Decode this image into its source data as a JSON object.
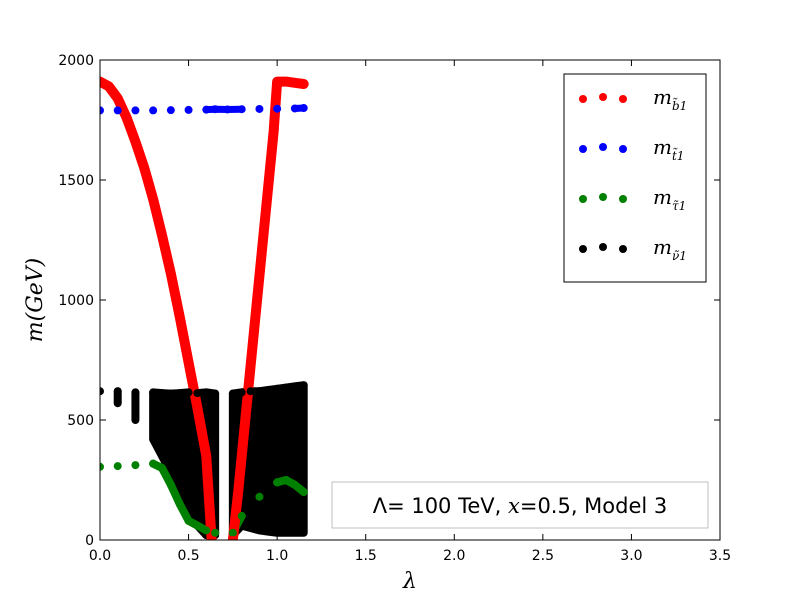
{
  "chart_data": {
    "type": "scatter",
    "title": "",
    "xlabel": "λ",
    "ylabel": "m(GeV)",
    "xlim": [
      0,
      3.5
    ],
    "ylim": [
      0,
      2000
    ],
    "xticks": [
      0,
      0.5,
      1,
      1.5,
      2,
      2.5,
      3,
      3.5
    ],
    "xtick_labels": [
      "0.0",
      "0.5",
      "1.0",
      "1.5",
      "2.0",
      "2.5",
      "3.0",
      "3.5"
    ],
    "yticks": [
      0,
      500,
      1000,
      1500,
      2000
    ],
    "ytick_labels": [
      "0",
      "500",
      "1000",
      "1500",
      "2000"
    ],
    "grid": false,
    "legend_position": "top-right",
    "annotation": "Λ= 100 TeV, x=0.5, Model 3",
    "annotation_parts": {
      "pre": "Λ= 100 TeV, ",
      "var": "x",
      "post": "=0.5, Model 3"
    },
    "annotation_position": "bottom-right",
    "series": [
      {
        "name": "m_b̃1",
        "legend_base": "m",
        "legend_sub": "b̃1",
        "color": "#ff0000",
        "x": [
          0.0,
          0.05,
          0.1,
          0.15,
          0.2,
          0.25,
          0.3,
          0.35,
          0.4,
          0.45,
          0.5,
          0.55,
          0.6,
          0.63,
          0.75,
          0.78,
          0.82,
          0.86,
          0.9,
          0.94,
          0.98,
          1.0,
          1.05,
          1.1,
          1.15
        ],
        "y": [
          1910,
          1890,
          1840,
          1760,
          1660,
          1550,
          1420,
          1270,
          1110,
          930,
          740,
          550,
          350,
          0,
          0,
          200,
          500,
          800,
          1100,
          1400,
          1700,
          1910,
          1910,
          1905,
          1900
        ]
      },
      {
        "name": "m_t̃1",
        "legend_base": "m",
        "legend_sub": "t̃1",
        "color": "#0000ff",
        "x": [
          0.0,
          0.1,
          0.2,
          0.3,
          0.4,
          0.5,
          0.6,
          0.65,
          0.72,
          0.8,
          0.9,
          1.0,
          1.1,
          1.15
        ],
        "y": [
          1790,
          1790,
          1790,
          1790,
          1791,
          1792,
          1793,
          1795,
          1794,
          1795,
          1796,
          1797,
          1798,
          1800
        ]
      },
      {
        "name": "m_τ̃1",
        "legend_base": "m",
        "legend_sub": "τ̃1",
        "color": "#008000",
        "x": [
          0.0,
          0.1,
          0.2,
          0.3,
          0.35,
          0.4,
          0.45,
          0.5,
          0.55,
          0.6,
          0.65,
          0.75,
          0.8,
          0.9,
          1.0,
          1.05,
          1.1,
          1.15
        ],
        "y": [
          305,
          308,
          312,
          318,
          300,
          230,
          150,
          80,
          60,
          40,
          30,
          30,
          100,
          180,
          240,
          250,
          230,
          200
        ]
      },
      {
        "name": "m_ν̃1",
        "legend_base": "m",
        "legend_sub": "ν̃1",
        "color": "#000000",
        "x": [
          0.0,
          0.1,
          0.2,
          0.3,
          0.35,
          0.4,
          0.45,
          0.5,
          0.55,
          0.6,
          0.65,
          0.75,
          0.8,
          0.85,
          0.9,
          0.95,
          1.0,
          1.05,
          1.1,
          1.15
        ],
        "y": [
          620,
          620,
          615,
          615,
          612,
          610,
          612,
          615,
          612,
          615,
          610,
          610,
          615,
          620,
          620,
          625,
          630,
          635,
          640,
          645
        ],
        "y_low": [
          620,
          570,
          500,
          420,
          350,
          280,
          200,
          120,
          60,
          20,
          20,
          20,
          60,
          50,
          40,
          35,
          30,
          30,
          30,
          30
        ]
      }
    ]
  }
}
